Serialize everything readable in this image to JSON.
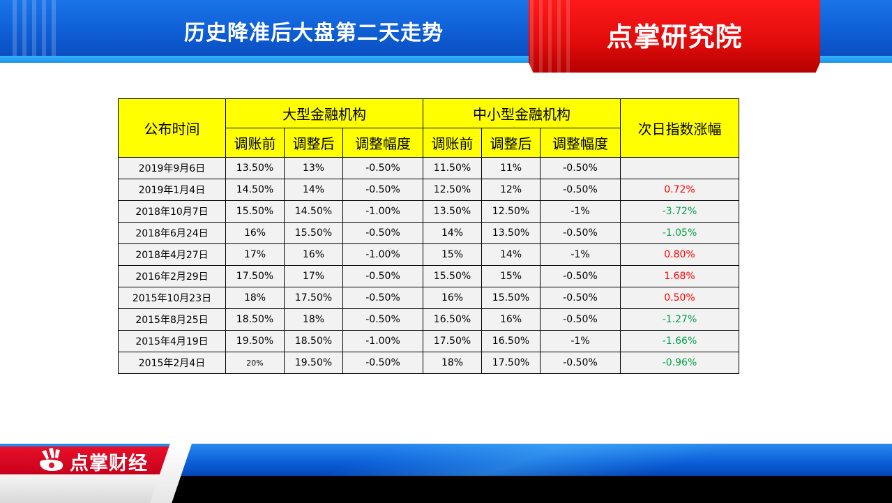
{
  "header": {
    "title": "历史降准后大盘第二天走势",
    "brand": "点掌研究院"
  },
  "table": {
    "col_date": "公布时间",
    "group_large": "大型金融机构",
    "group_small": "中小型金融机构",
    "col_change": "次日指数涨幅",
    "sub_before": "调账前",
    "sub_after": "调整后",
    "sub_range": "调整幅度",
    "rows": [
      {
        "date": "2019年9月6日",
        "lb": "13.50%",
        "la": "13%",
        "lr": "-0.50%",
        "sb": "11.50%",
        "sa": "11%",
        "sr": "-0.50%",
        "chg": ""
      },
      {
        "date": "2019年1月4日",
        "lb": "14.50%",
        "la": "14%",
        "lr": "-0.50%",
        "sb": "12.50%",
        "sa": "12%",
        "sr": "-0.50%",
        "chg": "0.72%"
      },
      {
        "date": "2018年10月7日",
        "lb": "15.50%",
        "la": "14.50%",
        "lr": "-1.00%",
        "sb": "13.50%",
        "sa": "12.50%",
        "sr": "-1%",
        "chg": "-3.72%"
      },
      {
        "date": "2018年6月24日",
        "lb": "16%",
        "la": "15.50%",
        "lr": "-0.50%",
        "sb": "14%",
        "sa": "13.50%",
        "sr": "-0.50%",
        "chg": "-1.05%"
      },
      {
        "date": "2018年4月27日",
        "lb": "17%",
        "la": "16%",
        "lr": "-1.00%",
        "sb": "15%",
        "sa": "14%",
        "sr": "-1%",
        "chg": "0.80%"
      },
      {
        "date": "2016年2月29日",
        "lb": "17.50%",
        "la": "17%",
        "lr": "-0.50%",
        "sb": "15.50%",
        "sa": "15%",
        "sr": "-0.50%",
        "chg": "1.68%"
      },
      {
        "date": "2015年10月23日",
        "lb": "18%",
        "la": "17.50%",
        "lr": "-0.50%",
        "sb": "16%",
        "sa": "15.50%",
        "sr": "-0.50%",
        "chg": "0.50%"
      },
      {
        "date": "2015年8月25日",
        "lb": "18.50%",
        "la": "18%",
        "lr": "-0.50%",
        "sb": "16.50%",
        "sa": "16%",
        "sr": "-0.50%",
        "chg": "-1.27%"
      },
      {
        "date": "2015年4月19日",
        "lb": "19.50%",
        "la": "18.50%",
        "lr": "-1.00%",
        "sb": "17.50%",
        "sa": "16.50%",
        "sr": "-1%",
        "chg": "-1.66%"
      },
      {
        "date": "2015年2月4日",
        "lb": "20%",
        "la": "19.50%",
        "lr": "-0.50%",
        "sb": "18%",
        "sa": "17.50%",
        "sr": "-0.50%",
        "chg": "-0.96%"
      }
    ]
  },
  "footer": {
    "logo_text": "点掌财经"
  },
  "colors": {
    "positive": "#ff0000",
    "negative": "#00a04a",
    "header_fill": "#ffff00"
  }
}
